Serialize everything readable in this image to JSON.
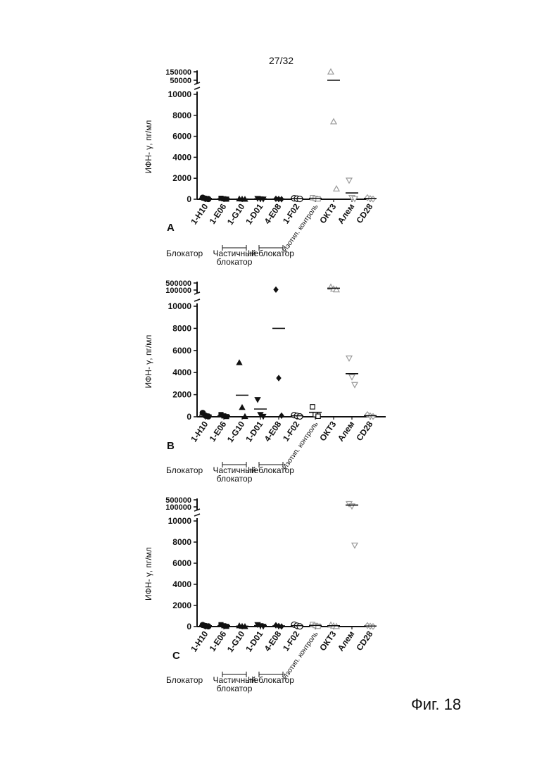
{
  "page_number": "27/32",
  "figure_caption": "Фиг. 18",
  "colors": {
    "ink": "#111111",
    "faint": "#aaaaaa",
    "axis": "#111111"
  },
  "chart_data": [
    {
      "type": "scatter",
      "panel_label": "A",
      "ylabel": "ИФН- γ, пг/мл",
      "categories": [
        "1-H10",
        "1-E06",
        "1-G10",
        "1-D01",
        "4-E08",
        "1-F02",
        "Изотип. контроль",
        "ОКТ3",
        "Алем",
        "CD28"
      ],
      "yticks": [
        "0",
        "2000",
        "4000",
        "6000",
        "8000",
        "10000"
      ],
      "ytop_ticks": [
        "50000",
        "150000"
      ],
      "ylim": [
        0,
        10000
      ],
      "axis_break": [
        10000,
        50000
      ],
      "groups": [
        {
          "label": "Блокатор",
          "from": 0,
          "to": 0
        },
        {
          "label": "Частичный блокатор",
          "from": 1,
          "to": 2
        },
        {
          "label": "Неблокатор",
          "from": 3,
          "to": 4
        }
      ],
      "series": [
        {
          "category": "1-H10",
          "marker": "circle",
          "faint": false,
          "points": [
            150,
            60,
            20
          ],
          "mean": 80
        },
        {
          "category": "1-E06",
          "marker": "square",
          "faint": false,
          "points": [
            90,
            40,
            10
          ],
          "mean": 50
        },
        {
          "category": "1-G10",
          "marker": "triangle",
          "faint": false,
          "points": [
            40,
            20,
            5
          ],
          "mean": 20
        },
        {
          "category": "1-D01",
          "marker": "triangle-down",
          "faint": false,
          "points": [
            70,
            30,
            10
          ],
          "mean": 35
        },
        {
          "category": "4-E08",
          "marker": "diamond",
          "faint": false,
          "points": [
            40,
            20,
            5
          ],
          "mean": 20
        },
        {
          "category": "1-F02",
          "marker": "circle-open",
          "faint": false,
          "points": [
            90,
            60,
            30
          ],
          "mean": 60
        },
        {
          "category": "Изотип. контроль",
          "marker": "square-open",
          "faint": true,
          "points": [
            150,
            80,
            30
          ],
          "mean": 90
        },
        {
          "category": "ОКТ3",
          "marker": "triangle-open",
          "faint": true,
          "points": [
            150000,
            7400,
            1000
          ],
          "mean": 50000
        },
        {
          "category": "Алем",
          "marker": "triangle-down-open",
          "faint": true,
          "points": [
            1800,
            150,
            40
          ],
          "mean": 600
        },
        {
          "category": "CD28",
          "marker": "diamond-open",
          "faint": true,
          "points": [
            150,
            60,
            20
          ],
          "mean": 80
        }
      ]
    },
    {
      "type": "scatter",
      "panel_label": "B",
      "ylabel": "ИФН- γ, пг/мл",
      "categories": [
        "1-H10",
        "1-E06",
        "1-G10",
        "1-D01",
        "4-E08",
        "1-F02",
        "Изотип. контроль",
        "ОКТ3",
        "Алем",
        "CD28"
      ],
      "yticks": [
        "0",
        "2000",
        "4000",
        "6000",
        "8000",
        "10000"
      ],
      "ytop_ticks": [
        "100000",
        "500000"
      ],
      "ylim": [
        0,
        10000
      ],
      "axis_break": [
        10000,
        100000
      ],
      "groups": [
        {
          "label": "Блокатор",
          "from": 0,
          "to": 0
        },
        {
          "label": "Частичный блокатор",
          "from": 1,
          "to": 2
        },
        {
          "label": "Неблокатор",
          "from": 3,
          "to": 4
        }
      ],
      "series": [
        {
          "category": "1-H10",
          "marker": "circle",
          "faint": false,
          "points": [
            350,
            100,
            30
          ],
          "mean": 150
        },
        {
          "category": "1-E06",
          "marker": "square",
          "faint": false,
          "points": [
            200,
            80,
            20
          ],
          "mean": 100
        },
        {
          "category": "1-G10",
          "marker": "triangle",
          "faint": false,
          "points": [
            4900,
            850,
            30
          ],
          "mean": 1950
        },
        {
          "category": "1-D01",
          "marker": "triangle-down",
          "faint": false,
          "points": [
            1550,
            200,
            30
          ],
          "mean": 700
        },
        {
          "category": "4-E08",
          "marker": "diamond",
          "faint": false,
          "points": [
            110000,
            3500,
            100
          ],
          "mean": 8000
        },
        {
          "category": "1-F02",
          "marker": "circle-open",
          "faint": false,
          "points": [
            150,
            80,
            30
          ],
          "mean": 90
        },
        {
          "category": "Изотип. контроль",
          "marker": "square-open",
          "faint": false,
          "points": [
            900,
            200,
            50
          ],
          "mean": 400
        },
        {
          "category": "ОКТ3",
          "marker": "triangle-open",
          "faint": true,
          "points": [
            200000,
            130000,
            110000
          ],
          "mean": 150000
        },
        {
          "category": "Алем",
          "marker": "triangle-down-open",
          "faint": true,
          "points": [
            5300,
            3600,
            2900
          ],
          "mean": 3900
        },
        {
          "category": "CD28",
          "marker": "diamond-open",
          "faint": true,
          "points": [
            200,
            80,
            30
          ],
          "mean": 100
        }
      ]
    },
    {
      "type": "scatter",
      "panel_label": "C",
      "ylabel": "ИФН- γ, пг/мл",
      "categories": [
        "1-H10",
        "1-E06",
        "1-G10",
        "1-D01",
        "4-E08",
        "1-F02",
        "Изотип. контроль",
        "ОКТ3",
        "Алем",
        "CD28"
      ],
      "yticks": [
        "0",
        "2000",
        "4000",
        "6000",
        "8000",
        "10000"
      ],
      "ytop_ticks": [
        "100000",
        "500000"
      ],
      "ylim": [
        0,
        10000
      ],
      "axis_break": [
        10000,
        100000
      ],
      "groups": [
        {
          "label": "Блокатор",
          "from": 0,
          "to": 0
        },
        {
          "label": "Частичный блокатор",
          "from": 1,
          "to": 2
        },
        {
          "label": "Неблокатор",
          "from": 3,
          "to": 4
        }
      ],
      "series": [
        {
          "category": "1-H10",
          "marker": "circle",
          "faint": false,
          "points": [
            150,
            60,
            20
          ],
          "mean": 80
        },
        {
          "category": "1-E06",
          "marker": "square",
          "faint": false,
          "points": [
            180,
            80,
            20
          ],
          "mean": 90
        },
        {
          "category": "1-G10",
          "marker": "triangle",
          "faint": false,
          "points": [
            80,
            30,
            10
          ],
          "mean": 40
        },
        {
          "category": "1-D01",
          "marker": "triangle-down",
          "faint": false,
          "points": [
            180,
            80,
            20
          ],
          "mean": 90
        },
        {
          "category": "4-E08",
          "marker": "diamond",
          "faint": false,
          "points": [
            120,
            50,
            10
          ],
          "mean": 60
        },
        {
          "category": "1-F02",
          "marker": "circle-open",
          "faint": false,
          "points": [
            180,
            80,
            20
          ],
          "mean": 90
        },
        {
          "category": "Изотип. контроль",
          "marker": "square-open",
          "faint": true,
          "points": [
            200,
            100,
            30
          ],
          "mean": 110
        },
        {
          "category": "ОКТ3",
          "marker": "triangle-open",
          "faint": true,
          "points": [
            150,
            60,
            20
          ],
          "mean": 80
        },
        {
          "category": "Алем",
          "marker": "triangle-down-open",
          "faint": true,
          "points": [
            200000,
            120000,
            7700
          ],
          "mean": 150000
        },
        {
          "category": "CD28",
          "marker": "diamond-open",
          "faint": true,
          "points": [
            100,
            40,
            10
          ],
          "mean": 50
        }
      ]
    }
  ]
}
